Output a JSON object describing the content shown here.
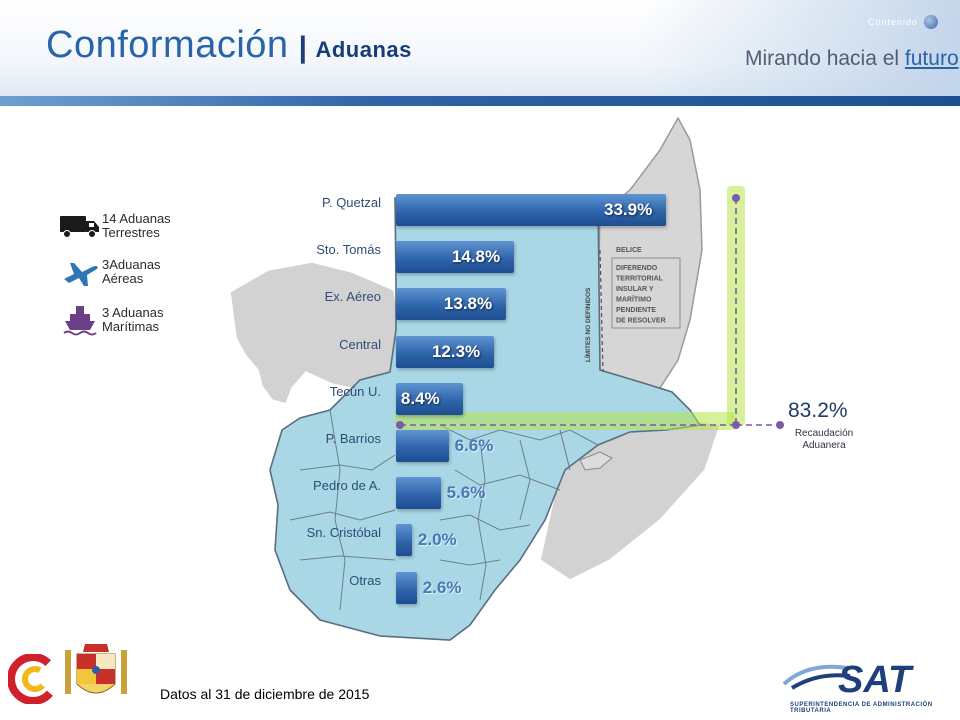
{
  "header": {
    "title": "Conformación",
    "separator": "|",
    "subtitle": "Aduanas",
    "slogan_prefix": "Mirando hacia el ",
    "slogan_highlight": "futuro",
    "contents_link": "Contenido"
  },
  "legend": [
    {
      "icon": "truck-icon",
      "text_line1": "14 Aduanas",
      "text_line2": "Terrestres"
    },
    {
      "icon": "airplane-icon",
      "text_line1": "3Aduanas",
      "text_line2": "Aéreas"
    },
    {
      "icon": "ship-icon",
      "text_line1": "3 Aduanas",
      "text_line2": "Marítimas"
    }
  ],
  "map_labels": {
    "belice": "BELICE",
    "dispute_lines": [
      "DIFERENDO",
      "TERRITORIAL",
      "INSULAR Y",
      "MARÍTIMO",
      "PENDIENTE",
      "DE RESOLVER"
    ],
    "border_note": "LÍMITES NO DEFINIDOS"
  },
  "chart_data": {
    "type": "bar",
    "orientation": "horizontal",
    "categories": [
      "P. Quetzal",
      "Sto. Tomás",
      "Ex. Aéreo",
      "Central",
      "Tecún U.",
      "P. Barrios",
      "Pedro de A.",
      "Sn. Cristóbal",
      "Otras"
    ],
    "values": [
      33.9,
      14.8,
      13.8,
      12.3,
      8.4,
      6.6,
      5.6,
      2.0,
      2.6
    ],
    "value_labels": [
      "33.9%",
      "14.8%",
      "13.8%",
      "12.3%",
      "8.4%",
      "6.6%",
      "5.6%",
      "2.0%",
      "2.6%"
    ],
    "unit": "%",
    "total_value": "83.2%",
    "total_label_line1": "Recaudación",
    "total_label_line2": "Aduanera"
  },
  "colors": {
    "title": "#2a64a8",
    "bar": "#2f65ab",
    "map_fill": "#a9d7e6",
    "map_neighbors": "#d4d4d4",
    "highlight_glow": "#b7e34a",
    "connector": "#7b5aa6"
  },
  "footer": {
    "note": "Datos al 31 de diciembre de 2015",
    "sat_subtitle": "SUPERINTENDENCIA DE ADMINISTRACIÓN TRIBUTARIA"
  }
}
